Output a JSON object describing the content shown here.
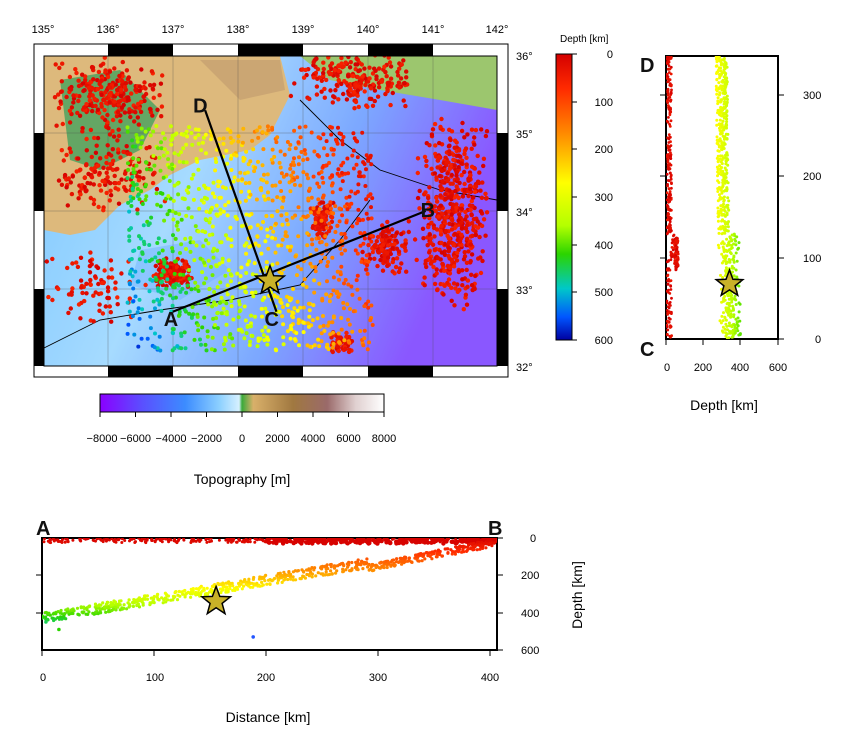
{
  "map": {
    "lon_ticks": [
      "135°",
      "136°",
      "137°",
      "138°",
      "139°",
      "140°",
      "141°",
      "142°"
    ],
    "lat_ticks": [
      "36°",
      "35°",
      "34°",
      "33°",
      "32°"
    ],
    "profile_labels": {
      "A": "A",
      "B": "B",
      "C": "C",
      "D": "D"
    },
    "extent": {
      "lon": [
        135,
        142
      ],
      "lat": [
        32,
        36
      ]
    },
    "profiles": {
      "AB": {
        "start": [
          137.0,
          32.7
        ],
        "end": [
          140.9,
          34.0
        ]
      },
      "CD": {
        "start": [
          138.6,
          32.7
        ],
        "end": [
          137.5,
          35.3
        ]
      }
    },
    "mainshock": {
      "lon": 138.5,
      "lat": 33.1,
      "depth_km": 340
    }
  },
  "depth_colorbar": {
    "title": "Depth [km]",
    "ticks": [
      "0",
      "100",
      "200",
      "300",
      "400",
      "500",
      "600"
    ],
    "range": [
      0,
      600
    ],
    "colors": [
      "#d40000",
      "#ff3a00",
      "#ff8c00",
      "#ffd400",
      "#ffff00",
      "#b4ff00",
      "#2bd400",
      "#00c8c8",
      "#0055ff",
      "#0000a0"
    ]
  },
  "topo_colorbar": {
    "title": "Topography [m]",
    "ticks": [
      "−8000",
      "−6000",
      "−4000",
      "−2000",
      "0",
      "2000",
      "4000",
      "6000",
      "8000"
    ],
    "range": [
      -8000,
      8000
    ],
    "colors": [
      "#8a00ff",
      "#6b4cff",
      "#3c8cff",
      "#7cc7ff",
      "#c9ecff",
      "#4caa4c",
      "#d9b06a",
      "#a07840",
      "#8a5a5a",
      "#dcc8c8",
      "#ffffff"
    ]
  },
  "side_profile": {
    "top_label": "D",
    "bottom_label": "C",
    "xlabel": "Depth [km]",
    "x_ticks": [
      "0",
      "200",
      "400",
      "600"
    ],
    "y_ticks": [
      "300",
      "200",
      "100",
      "0"
    ],
    "xlim": [
      0,
      600
    ],
    "ylim": [
      0,
      350
    ]
  },
  "bottom_profile": {
    "left_label": "A",
    "right_label": "B",
    "xlabel": "Distance [km]",
    "ylabel": "Depth [km]",
    "x_ticks": [
      "0",
      "100",
      "200",
      "300",
      "400"
    ],
    "y_ticks": [
      "0",
      "200",
      "400",
      "600"
    ],
    "xlim": [
      0,
      405
    ],
    "ylim": [
      0,
      600
    ]
  }
}
